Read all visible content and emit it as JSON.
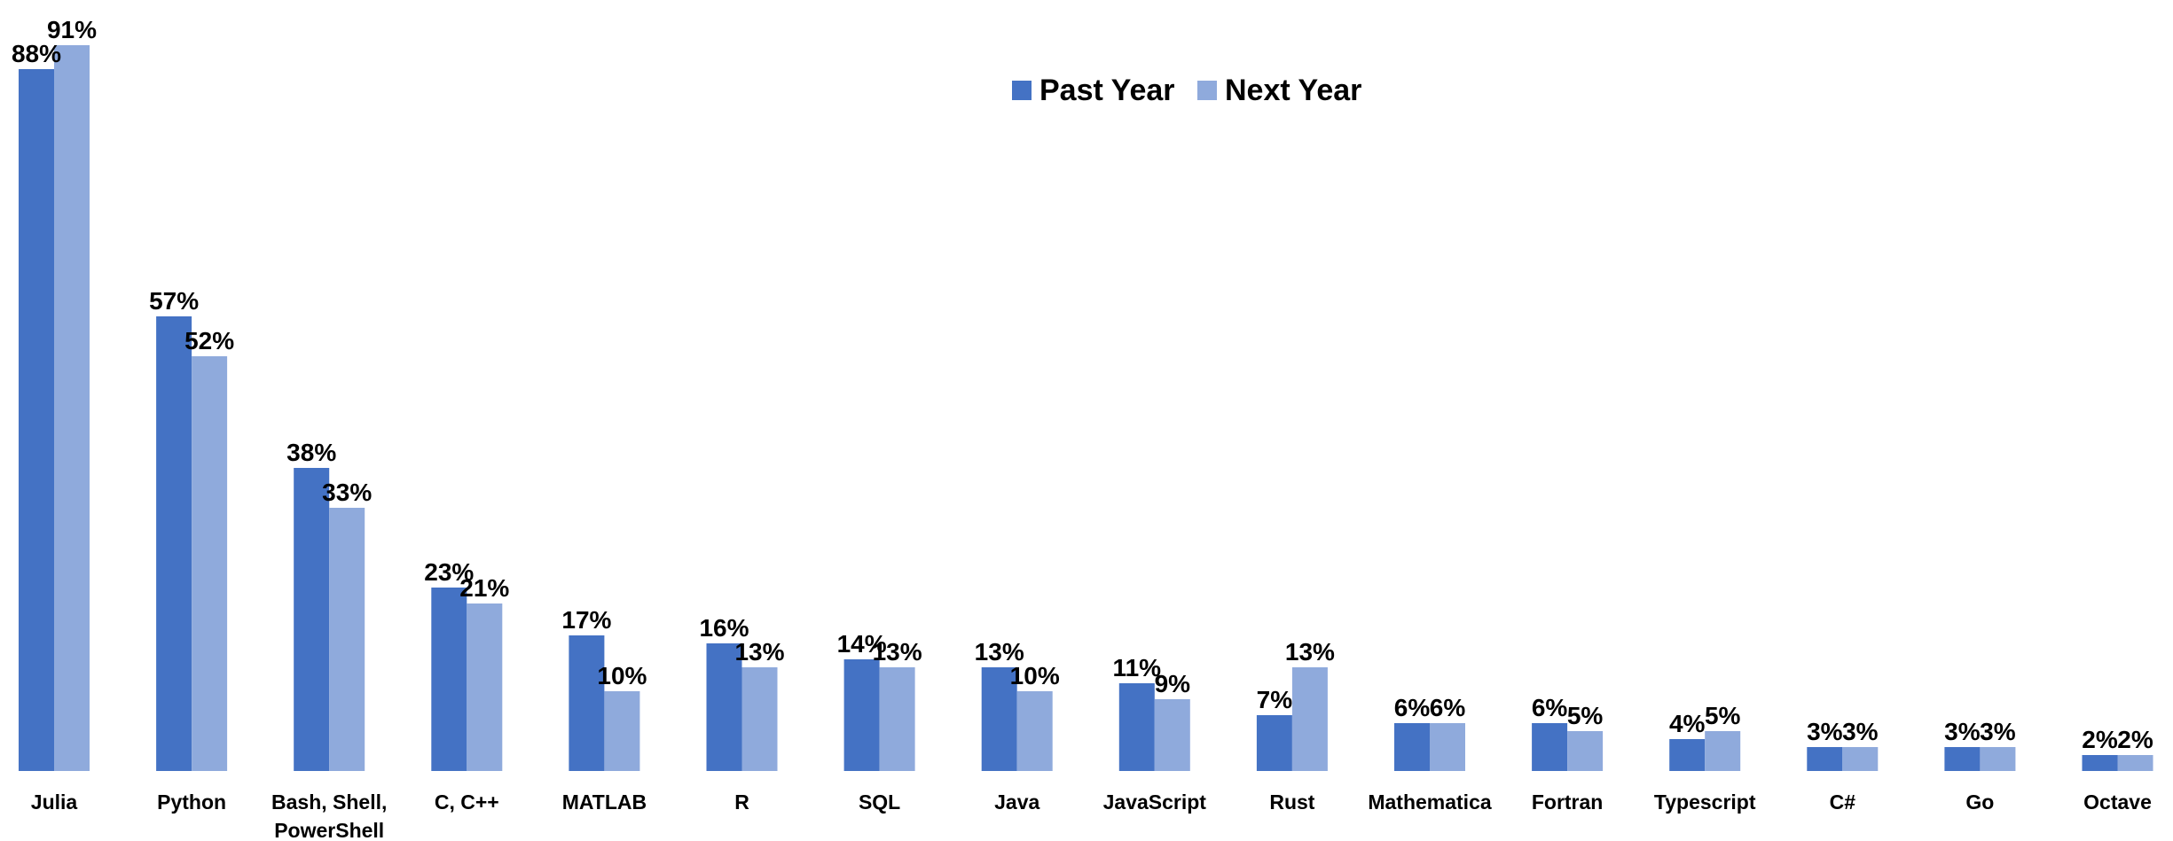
{
  "chart_data": {
    "type": "bar",
    "title": "",
    "xlabel": "",
    "ylabel": "",
    "ylim": [
      0,
      100
    ],
    "grid": false,
    "legend_position": "top-center",
    "categories": [
      "Julia",
      "Python",
      "Bash, Shell, PowerShell",
      "C, C++",
      "MATLAB",
      "R",
      "SQL",
      "Java",
      "JavaScript",
      "Rust",
      "Mathematica",
      "Fortran",
      "Typescript",
      "C#",
      "Go",
      "Octave"
    ],
    "category_lines": [
      [
        "Julia"
      ],
      [
        "Python"
      ],
      [
        "Bash, Shell,",
        "PowerShell"
      ],
      [
        "C, C++"
      ],
      [
        "MATLAB"
      ],
      [
        "R"
      ],
      [
        "SQL"
      ],
      [
        "Java"
      ],
      [
        "JavaScript"
      ],
      [
        "Rust"
      ],
      [
        "Mathematica"
      ],
      [
        "Fortran"
      ],
      [
        "Typescript"
      ],
      [
        "C#"
      ],
      [
        "Go"
      ],
      [
        "Octave"
      ]
    ],
    "series": [
      {
        "name": "Past Year",
        "color": "#4472C4",
        "values": [
          88,
          57,
          38,
          23,
          17,
          16,
          14,
          13,
          11,
          7,
          6,
          6,
          4,
          3,
          3,
          2
        ],
        "labels": [
          "88%",
          "57%",
          "38%",
          "23%",
          "17%",
          "16%",
          "14%",
          "13%",
          "11%",
          "7%",
          "6%",
          "6%",
          "4%",
          "3%",
          "3%",
          "2%"
        ]
      },
      {
        "name": "Next Year",
        "color": "#8FAADC",
        "values": [
          91,
          52,
          33,
          21,
          10,
          13,
          13,
          10,
          9,
          13,
          6,
          5,
          5,
          3,
          3,
          2
        ],
        "labels": [
          "91%",
          "52%",
          "33%",
          "21%",
          "10%",
          "13%",
          "13%",
          "10%",
          "9%",
          "13%",
          "6%",
          "5%",
          "5%",
          "3%",
          "3%",
          "2%"
        ]
      }
    ]
  }
}
